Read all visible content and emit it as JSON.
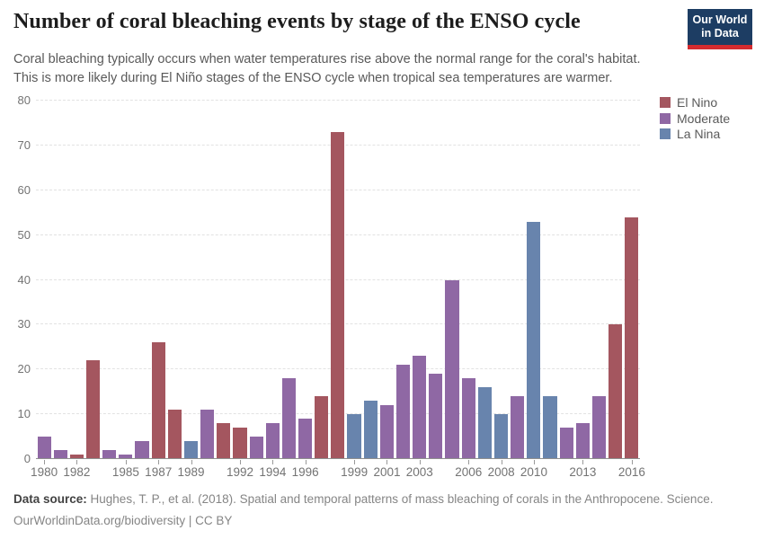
{
  "header": {
    "title": "Number of coral bleaching events by stage of the ENSO cycle",
    "subtitle_line1": "Coral bleaching typically occurs when water temperatures rise above the normal range for the coral's habitat.",
    "subtitle_line2": "This is more likely during El Niño stages of the ENSO cycle when tropical sea temperatures are warmer.",
    "logo": {
      "line1": "Our World",
      "line2": "in Data",
      "bg_color": "#1d3d63",
      "stripe_color": "#d42b2f"
    }
  },
  "legend": {
    "items": [
      {
        "label": "El Nino",
        "color": "#a4565f"
      },
      {
        "label": "Moderate",
        "color": "#8f68a4"
      },
      {
        "label": "La Nina",
        "color": "#6884ad"
      }
    ]
  },
  "chart_data": {
    "type": "bar",
    "title": "Number of coral bleaching events by stage of the ENSO cycle",
    "xlabel": "",
    "ylabel": "",
    "ylim": [
      0,
      80
    ],
    "yticks": [
      0,
      10,
      20,
      30,
      40,
      50,
      60,
      70,
      80
    ],
    "xtick_labels": [
      1980,
      1982,
      1985,
      1987,
      1989,
      1992,
      1994,
      1996,
      1999,
      2001,
      2003,
      2006,
      2008,
      2010,
      2013,
      2016
    ],
    "grid": "horizontal-dashed",
    "legend_position": "right-top",
    "colors": {
      "El Nino": "#a4565f",
      "Moderate": "#8f68a4",
      "La Nina": "#6884ad"
    },
    "bars": [
      {
        "year": 1980,
        "value": 5,
        "category": "Moderate"
      },
      {
        "year": 1981,
        "value": 2,
        "category": "Moderate"
      },
      {
        "year": 1982,
        "value": 1,
        "category": "El Nino"
      },
      {
        "year": 1983,
        "value": 22,
        "category": "El Nino"
      },
      {
        "year": 1984,
        "value": 2,
        "category": "Moderate"
      },
      {
        "year": 1985,
        "value": 1,
        "category": "Moderate"
      },
      {
        "year": 1986,
        "value": 4,
        "category": "Moderate"
      },
      {
        "year": 1987,
        "value": 26,
        "category": "El Nino"
      },
      {
        "year": 1988,
        "value": 11,
        "category": "El Nino"
      },
      {
        "year": 1989,
        "value": 4,
        "category": "La Nina"
      },
      {
        "year": 1990,
        "value": 11,
        "category": "Moderate"
      },
      {
        "year": 1991,
        "value": 8,
        "category": "El Nino"
      },
      {
        "year": 1992,
        "value": 7,
        "category": "El Nino"
      },
      {
        "year": 1993,
        "value": 5,
        "category": "Moderate"
      },
      {
        "year": 1994,
        "value": 8,
        "category": "Moderate"
      },
      {
        "year": 1995,
        "value": 18,
        "category": "Moderate"
      },
      {
        "year": 1996,
        "value": 9,
        "category": "Moderate"
      },
      {
        "year": 1997,
        "value": 14,
        "category": "El Nino"
      },
      {
        "year": 1998,
        "value": 73,
        "category": "El Nino"
      },
      {
        "year": 1999,
        "value": 10,
        "category": "La Nina"
      },
      {
        "year": 2000,
        "value": 13,
        "category": "La Nina"
      },
      {
        "year": 2001,
        "value": 12,
        "category": "Moderate"
      },
      {
        "year": 2002,
        "value": 21,
        "category": "Moderate"
      },
      {
        "year": 2003,
        "value": 23,
        "category": "Moderate"
      },
      {
        "year": 2004,
        "value": 19,
        "category": "Moderate"
      },
      {
        "year": 2005,
        "value": 40,
        "category": "Moderate"
      },
      {
        "year": 2006,
        "value": 18,
        "category": "Moderate"
      },
      {
        "year": 2007,
        "value": 16,
        "category": "La Nina"
      },
      {
        "year": 2008,
        "value": 10,
        "category": "La Nina"
      },
      {
        "year": 2009,
        "value": 14,
        "category": "Moderate"
      },
      {
        "year": 2010,
        "value": 53,
        "category": "La Nina"
      },
      {
        "year": 2011,
        "value": 14,
        "category": "La Nina"
      },
      {
        "year": 2012,
        "value": 7,
        "category": "Moderate"
      },
      {
        "year": 2013,
        "value": 8,
        "category": "Moderate"
      },
      {
        "year": 2014,
        "value": 14,
        "category": "Moderate"
      },
      {
        "year": 2015,
        "value": 30,
        "category": "El Nino"
      },
      {
        "year": 2016,
        "value": 54,
        "category": "El Nino"
      }
    ]
  },
  "footer": {
    "source_label": "Data source:",
    "source_text": " Hughes, T. P., et al. (2018). Spatial and temporal patterns of mass bleaching of corals in the Anthropocene. Science.",
    "link_line": "OurWorldinData.org/biodiversity | CC BY"
  }
}
